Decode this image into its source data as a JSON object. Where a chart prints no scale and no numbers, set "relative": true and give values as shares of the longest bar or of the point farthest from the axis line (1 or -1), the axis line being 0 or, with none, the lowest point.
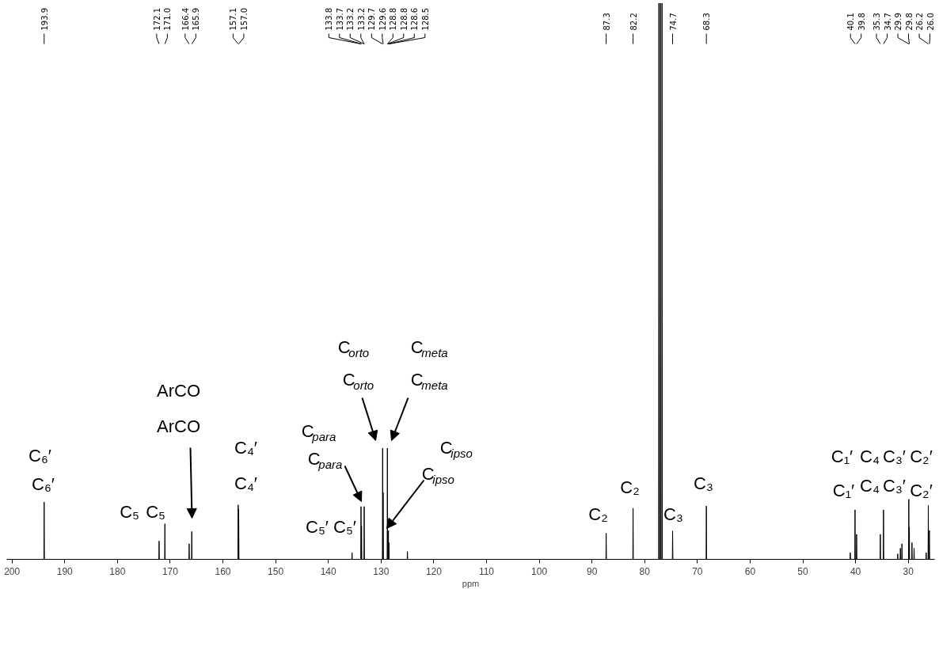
{
  "chart_data": {
    "type": "line",
    "relative": true,
    "xlabel": "ppm",
    "xlim": [
      201,
      25
    ],
    "xticks": [
      200,
      190,
      180,
      170,
      160,
      150,
      140,
      130,
      120,
      110,
      100,
      90,
      80,
      70,
      60,
      50,
      40,
      30
    ],
    "line_style": "solid",
    "series": [
      {
        "color": "#000000",
        "x": [
          201,
          193.95,
          193.9,
          193.85,
          172.15,
          172.1,
          172.05,
          171.05,
          171.0,
          170.95,
          166.45,
          166.4,
          166.35,
          165.95,
          165.9,
          165.85,
          157.15,
          157.1,
          157.05,
          157.05,
          157.0,
          156.95,
          135.55,
          135.5,
          135.45,
          133.85,
          133.8,
          133.75,
          133.75,
          133.7,
          133.65,
          133.25,
          133.2,
          133.15,
          129.75,
          129.7,
          129.65,
          129.65,
          129.6,
          129.55,
          128.85,
          128.8,
          128.75,
          128.65,
          128.6,
          128.55,
          128.55,
          128.5,
          128.45,
          125.05,
          125.0,
          124.95,
          87.35,
          87.3,
          87.25,
          82.25,
          82.2,
          82.15,
          77.35,
          77.3,
          77.25,
          77.05,
          77.0,
          76.95,
          76.75,
          76.7,
          76.65,
          74.75,
          74.7,
          74.65,
          68.35,
          68.3,
          68.25,
          41.05,
          41.0,
          40.95,
          40.15,
          40.1,
          40.05,
          39.85,
          39.8,
          39.75,
          35.35,
          35.3,
          35.25,
          34.75,
          34.7,
          34.65,
          32.05,
          32.0,
          31.95,
          31.55,
          31.5,
          31.45,
          31.25,
          31.2,
          31.15,
          29.95,
          29.9,
          29.85,
          29.85,
          29.8,
          29.75,
          29.35,
          29.3,
          29.25,
          28.95,
          28.9,
          28.85,
          26.65,
          26.6,
          26.55,
          26.25,
          26.2,
          26.15,
          26.05,
          26.0,
          25.95,
          25
        ],
        "values": [
          0,
          0,
          0.103,
          0,
          0,
          0.033,
          0,
          0,
          0.064,
          0,
          0,
          0.028,
          0,
          0,
          0.05,
          0,
          0,
          0.098,
          0,
          0,
          0.09,
          0,
          0,
          0.012,
          0,
          0,
          0.095,
          0,
          0,
          0.06,
          0,
          0,
          0.095,
          0,
          0,
          0.2,
          0,
          0,
          0.12,
          0,
          0,
          0.2,
          0,
          0,
          0.052,
          0,
          0,
          0.03,
          0,
          0,
          0.014,
          0,
          0,
          0.047,
          0,
          0,
          0.092,
          0,
          0,
          1,
          0,
          0,
          1,
          0,
          0,
          1,
          0,
          0,
          0.051,
          0,
          0,
          0.096,
          0,
          0,
          0.012,
          0,
          0,
          0.089,
          0,
          0,
          0.045,
          0,
          0,
          0.045,
          0,
          0,
          0.089,
          0,
          0,
          0.01,
          0,
          0,
          0.02,
          0,
          0,
          0.028,
          0,
          0,
          0.108,
          0,
          0,
          0.058,
          0,
          0,
          0.03,
          0,
          0,
          0.02,
          0,
          0,
          0.012,
          0,
          0,
          0.097,
          0,
          0,
          0.052,
          0,
          0
        ]
      }
    ],
    "annotations": [
      {
        "text": "193.9",
        "x": 193.9
      },
      {
        "text": "172.1",
        "x": 172.1
      },
      {
        "text": "171.0",
        "x": 171.0
      },
      {
        "text": "166.4",
        "x": 166.4
      },
      {
        "text": "165.9",
        "x": 165.9
      },
      {
        "text": "157.1",
        "x": 157.1
      },
      {
        "text": "157.0",
        "x": 157.0
      },
      {
        "text": "133.8",
        "x": 133.8
      },
      {
        "text": "133.7",
        "x": 133.7
      },
      {
        "text": "133.2",
        "x": 133.2
      },
      {
        "text": "133.2",
        "x": 133.2
      },
      {
        "text": "129.7",
        "x": 129.7
      },
      {
        "text": "129.6",
        "x": 129.6
      },
      {
        "text": "128.8",
        "x": 128.8
      },
      {
        "text": "128.8",
        "x": 128.8
      },
      {
        "text": "128.6",
        "x": 128.6
      },
      {
        "text": "128.5",
        "x": 128.5
      },
      {
        "text": "87.3",
        "x": 87.3
      },
      {
        "text": "82.2",
        "x": 82.2
      },
      {
        "text": "74.7",
        "x": 74.7
      },
      {
        "text": "68.3",
        "x": 68.3
      },
      {
        "text": "40.1",
        "x": 40.1
      },
      {
        "text": "39.8",
        "x": 39.8
      },
      {
        "text": "35.3",
        "x": 35.3
      },
      {
        "text": "34.7",
        "x": 34.7
      },
      {
        "text": "29.9",
        "x": 29.9
      },
      {
        "text": "29.8",
        "x": 29.8
      },
      {
        "text": "26.2",
        "x": 26.2
      },
      {
        "text": "26.0",
        "x": 26.0
      },
      "C₆′",
      "C₆′",
      "C₅",
      "C₅",
      "ArCO",
      "ArCO",
      "C₄′",
      "C₄′",
      "C$_{para}$",
      "C$_{para}$",
      "C₅′",
      "C₅′",
      "C$_{orto}$",
      "C$_{orto}$",
      "C$_{meta}$",
      "C$_{meta}$",
      "C$_{ipso}$",
      "C$_{ipso}$",
      "C₂",
      "C₂",
      "C₃",
      "C₃",
      "C₁′",
      "C₁′",
      "C₄",
      "C₄",
      "C₃′",
      "C₃′",
      "C₂′",
      "C₂′"
    ]
  }
}
